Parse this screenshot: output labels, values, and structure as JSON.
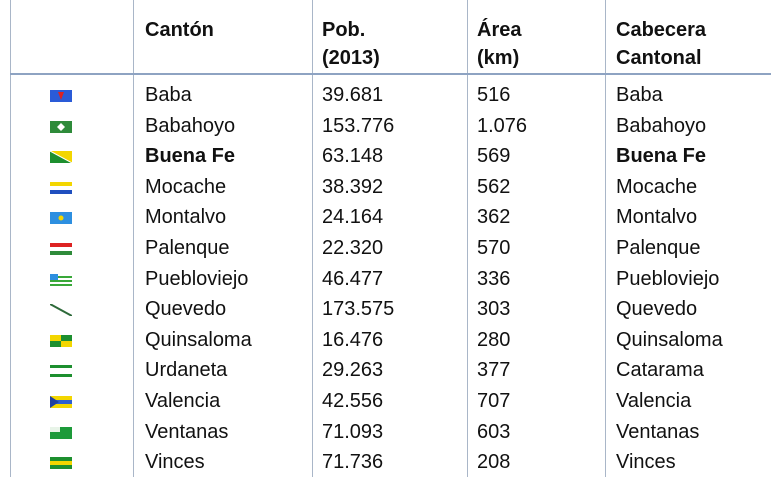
{
  "table": {
    "header": [
      "Cantón",
      "Pob.\n(2013)",
      "Área\n(km)",
      "Cabecera\nCantonal"
    ],
    "rows": [
      [
        "Baba",
        "39.681",
        "516",
        "Baba"
      ],
      [
        "Babahoyo",
        "153.776",
        "1.076",
        "Babahoyo"
      ],
      [
        "Buena Fe",
        "63.148",
        "569",
        "Buena Fe"
      ],
      [
        "Mocache",
        "38.392",
        "562",
        "Mocache"
      ],
      [
        "Montalvo",
        "24.164",
        "362",
        "Montalvo"
      ],
      [
        "Palenque",
        "22.320",
        "570",
        "Palenque"
      ],
      [
        "Puebloviejo",
        "46.477",
        "336",
        "Puebloviejo"
      ],
      [
        "Quevedo",
        "173.575",
        "303",
        "Quevedo"
      ],
      [
        "Quinsaloma",
        "16.476",
        "280",
        "Quinsaloma"
      ],
      [
        "Urdaneta",
        "29.263",
        "377",
        "Catarama"
      ],
      [
        "Valencia",
        "42.556",
        "707",
        "Valencia"
      ],
      [
        "Ventanas",
        "71.093",
        "603",
        "Ventanas"
      ],
      [
        "Vinces",
        "71.736",
        "208",
        "Vinces"
      ]
    ]
  }
}
